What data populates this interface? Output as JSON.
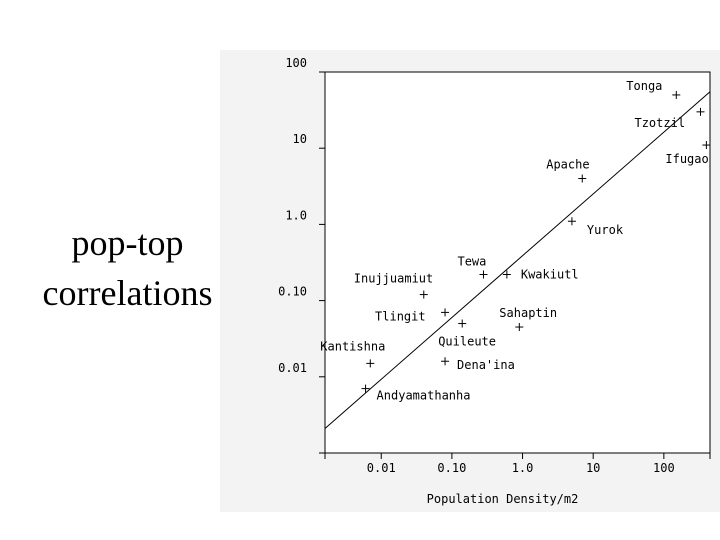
{
  "slide": {
    "title_line1": "pop-top",
    "title_line2": "correlations"
  },
  "chart_data": {
    "type": "scatter",
    "title": "",
    "xlabel": "Population Density/m2",
    "ylabel": "",
    "x_scale": "log",
    "y_scale": "log",
    "xlim": [
      0.0016,
      450
    ],
    "ylim": [
      0.001,
      100
    ],
    "x_ticks": [
      {
        "value": 0.01,
        "label": "0.01"
      },
      {
        "value": 0.1,
        "label": "0.10"
      },
      {
        "value": 1,
        "label": "1.0"
      },
      {
        "value": 10,
        "label": "10"
      },
      {
        "value": 100,
        "label": "100"
      }
    ],
    "y_ticks": [
      {
        "value": 100,
        "label": "100"
      },
      {
        "value": 10,
        "label": "10"
      },
      {
        "value": 1,
        "label": "1.0"
      },
      {
        "value": 0.1,
        "label": "0.10"
      },
      {
        "value": 0.01,
        "label": "0.01"
      },
      {
        "value": 0.001,
        "label": ""
      }
    ],
    "grid": false,
    "marker": "+",
    "points": [
      {
        "label": "Tonga",
        "x": 150,
        "y": 50
      },
      {
        "label": "Tzotzil",
        "x": 330,
        "y": 30
      },
      {
        "label": "Ifugao",
        "x": 400,
        "y": 11
      },
      {
        "label": "Apache",
        "x": 7,
        "y": 4
      },
      {
        "label": "Yurok",
        "x": 5,
        "y": 1.1
      },
      {
        "label": "Tewa",
        "x": 0.28,
        "y": 0.22
      },
      {
        "label": "Kwakiutl",
        "x": 0.6,
        "y": 0.22
      },
      {
        "label": "Inujjuamiut",
        "x": 0.04,
        "y": 0.12
      },
      {
        "label": "Tlingit",
        "x": 0.08,
        "y": 0.07
      },
      {
        "label": "Quileute",
        "x": 0.14,
        "y": 0.05
      },
      {
        "label": "Sahaptin",
        "x": 0.9,
        "y": 0.045
      },
      {
        "label": "Kantishna",
        "x": 0.007,
        "y": 0.015
      },
      {
        "label": "Dena'ina",
        "x": 0.08,
        "y": 0.016
      },
      {
        "label": "Andyamathanha",
        "x": 0.006,
        "y": 0.007
      }
    ],
    "trend_line": [
      {
        "x": 0.0016,
        "y": 0.0021
      },
      {
        "x": 450,
        "y": 55
      }
    ]
  }
}
